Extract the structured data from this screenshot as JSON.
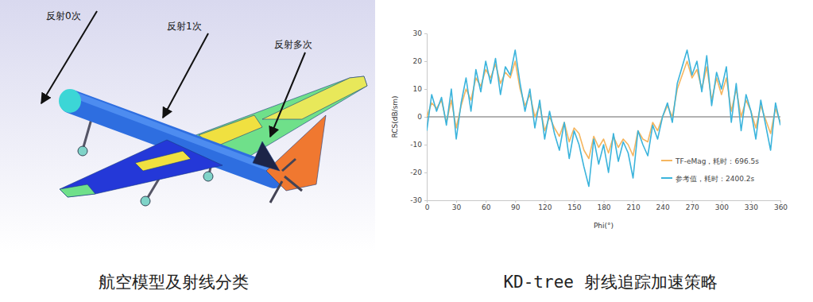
{
  "chart_data": {
    "type": "line",
    "x_label": "Phi(°)",
    "y_label": "RCS(dB/sm)",
    "caption": "KD-tree 射线追踪加速策略",
    "xlim": [
      0,
      360
    ],
    "ylim": [
      -30,
      30
    ],
    "xticks": [
      0,
      30,
      60,
      90,
      120,
      150,
      180,
      210,
      240,
      270,
      300,
      330,
      360
    ],
    "yticks": [
      -30,
      -20,
      -10,
      0,
      10,
      20,
      30
    ],
    "legend": "lower right",
    "x": [
      0,
      5,
      10,
      15,
      20,
      25,
      30,
      35,
      40,
      45,
      50,
      55,
      60,
      65,
      70,
      75,
      80,
      85,
      90,
      95,
      100,
      105,
      110,
      115,
      120,
      125,
      130,
      135,
      140,
      145,
      150,
      155,
      160,
      165,
      170,
      175,
      180,
      185,
      190,
      195,
      200,
      205,
      210,
      215,
      220,
      225,
      230,
      235,
      240,
      245,
      250,
      255,
      260,
      265,
      270,
      275,
      280,
      285,
      290,
      295,
      300,
      305,
      310,
      315,
      320,
      325,
      330,
      335,
      340,
      345,
      350,
      355,
      360
    ],
    "series": [
      {
        "name": "TF-eMag，耗时：696.5s",
        "color": "#f5b660",
        "values": [
          0,
          5,
          3,
          6,
          -2,
          6,
          -4,
          4,
          10,
          6,
          14,
          11,
          17,
          14,
          19,
          12,
          16,
          14,
          20,
          10,
          4,
          8,
          0,
          4,
          -5,
          0,
          -4,
          -7,
          -2,
          -9,
          -4,
          -6,
          -12,
          -15,
          -7,
          -11,
          -8,
          -13,
          -7,
          -11,
          -8,
          -10,
          -14,
          -5,
          -8,
          -9,
          -2,
          -5,
          0,
          4,
          0,
          10,
          15,
          20,
          14,
          17,
          10,
          18,
          6,
          14,
          8,
          14,
          2,
          10,
          0,
          6,
          2,
          -4,
          4,
          -1,
          -6,
          3,
          -2
        ]
      },
      {
        "name": "参考值，耗时：2400.2s",
        "color": "#3cb4dc",
        "values": [
          -5,
          8,
          2,
          7,
          -3,
          10,
          -8,
          5,
          14,
          2,
          17,
          9,
          20,
          12,
          21,
          8,
          18,
          15,
          24,
          12,
          2,
          10,
          -4,
          6,
          -8,
          2,
          -6,
          -12,
          -2,
          -15,
          -5,
          -10,
          -18,
          -25,
          -8,
          -17,
          -10,
          -20,
          -6,
          -16,
          -9,
          -13,
          -22,
          -5,
          -10,
          -14,
          -3,
          -8,
          0,
          5,
          -2,
          12,
          18,
          24,
          15,
          20,
          9,
          22,
          4,
          16,
          10,
          18,
          -2,
          12,
          -5,
          8,
          2,
          -8,
          6,
          -3,
          -12,
          5,
          -3
        ]
      }
    ]
  },
  "figure": {
    "annotations": [
      "反射0次",
      "反射1次",
      "反射多次"
    ],
    "caption": "航空模型及射线分类"
  }
}
